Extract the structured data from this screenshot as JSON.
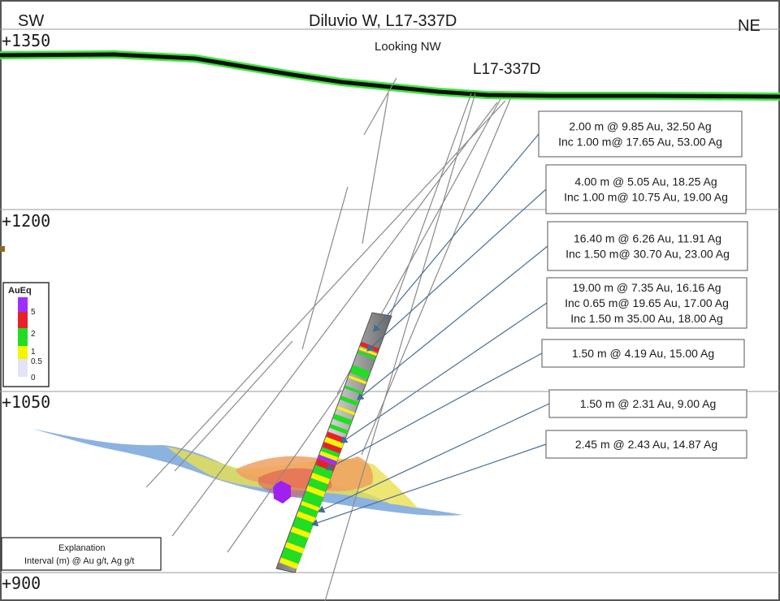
{
  "header": {
    "title": "Diluvio W,  L17-337D",
    "left_dir": "SW",
    "right_dir": "NE",
    "view": "Looking NW",
    "hole_label": "L17-337D"
  },
  "elevations": [
    "+1350",
    "+1200",
    "+1050",
    "+900"
  ],
  "legend": {
    "title": "AuEq",
    "ticks": [
      "5",
      "2",
      "1",
      "0.5",
      "0"
    ],
    "colors": [
      "#9b30ff",
      "#e8202a",
      "#22dd22",
      "#f5f500",
      "#e3e3f7"
    ]
  },
  "intervals": [
    {
      "lines": [
        "2.00 m @ 9.85 Au, 32.50 Ag",
        "Inc 1.00 m@ 17.65 Au, 53.00 Ag"
      ]
    },
    {
      "lines": [
        "4.00 m @ 5.05 Au, 18.25 Ag",
        "Inc 1.00 m@ 10.75 Au, 19.00 Ag"
      ]
    },
    {
      "lines": [
        "16.40 m @ 6.26 Au, 11.91 Ag",
        "Inc 1.50 m@ 30.70 Au, 23.00 Ag"
      ]
    },
    {
      "lines": [
        "19.00 m @ 7.35 Au, 16.16 Ag",
        "Inc 0.65 m@ 19.65 Au, 17.00 Ag",
        "Inc 1.50 m 35.00 Au, 18.00 Ag"
      ]
    },
    {
      "lines": [
        "1.50 m @ 4.19 Au, 15.00 Ag"
      ]
    },
    {
      "lines": [
        "1.50 m @ 2.31 Au, 9.00 Ag"
      ]
    },
    {
      "lines": [
        "2.45 m @ 2.43 Au, 14.87 Ag"
      ]
    }
  ],
  "explanation": {
    "title": "Explanation",
    "text": "Interval (m) @  Au g/t, Ag g/t"
  },
  "colors": {
    "topo_glow": "#3ee63e",
    "topo_core": "#111111",
    "grid": "#9a9a9a",
    "hole_trace": "#8a8a8a",
    "zone_blue": "#6f9fd8",
    "zone_yellow": "#e8e050",
    "zone_orange": "#f0a060",
    "zone_red": "#e05050",
    "zone_purple": "#a020f0",
    "leader": "#4a6f90"
  }
}
